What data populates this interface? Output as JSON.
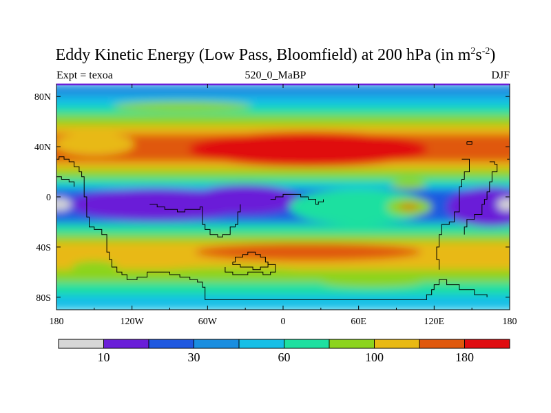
{
  "title": {
    "main": "Eddy Kinetic Energy (Low Pass, Bloomfield) at 200 hPa (in m",
    "sup1": "2",
    "mid": "s",
    "sup2": "-2",
    "close": ")"
  },
  "subtitle_left": "Expt = texoa",
  "subtitle_center": "520_0_MaBP",
  "subtitle_right": "DJF",
  "chart_data": {
    "type": "heatmap",
    "title": "Eddy Kinetic Energy (Low Pass, Bloomfield) at 200 hPa (in m^2 s^-2)",
    "x_range": [
      -180,
      180
    ],
    "y_range": [
      -90,
      90
    ],
    "x_ticks": [
      {
        "value": -180,
        "label": "180"
      },
      {
        "value": -120,
        "label": "120W"
      },
      {
        "value": -60,
        "label": "60W"
      },
      {
        "value": 0,
        "label": "0"
      },
      {
        "value": 60,
        "label": "60E"
      },
      {
        "value": 120,
        "label": "120E"
      },
      {
        "value": 180,
        "label": "180"
      }
    ],
    "y_ticks": [
      {
        "value": 80,
        "label": "80N"
      },
      {
        "value": 40,
        "label": "40N"
      },
      {
        "value": 0,
        "label": "0"
      },
      {
        "value": -40,
        "label": "40S"
      },
      {
        "value": -80,
        "label": "80S"
      }
    ],
    "colorbar": {
      "colors": [
        "#d6d6d6",
        "#6a1ed8",
        "#1f58e0",
        "#1a8ee0",
        "#16bfe6",
        "#1ee0a0",
        "#8cd41e",
        "#e8b914",
        "#e0580c",
        "#e00c10"
      ],
      "labels": [
        {
          "after_box": 1,
          "text": "10"
        },
        {
          "after_box": 3,
          "text": "30"
        },
        {
          "after_box": 5,
          "text": "60"
        },
        {
          "after_box": 7,
          "text": "100"
        },
        {
          "after_box": 9,
          "text": "180"
        }
      ]
    },
    "bands": [
      {
        "lat_top": 90,
        "lat_bottom": 80,
        "color": "#1a8ee0"
      },
      {
        "lat_top": 80,
        "lat_bottom": 72,
        "color": "#16bfe6"
      },
      {
        "lat_top": 72,
        "lat_bottom": 65,
        "color": "#1ee0a0"
      },
      {
        "lat_top": 65,
        "lat_bottom": 57,
        "color": "#8cd41e"
      },
      {
        "lat_top": 57,
        "lat_bottom": 50,
        "color": "#e8b914"
      },
      {
        "lat_top": 50,
        "lat_bottom": 28,
        "color": "#e0580c"
      },
      {
        "lat_top": 28,
        "lat_bottom": 22,
        "color": "#e8b914"
      },
      {
        "lat_top": 22,
        "lat_bottom": 15,
        "color": "#8cd41e"
      },
      {
        "lat_top": 15,
        "lat_bottom": 10,
        "color": "#1ee0a0"
      },
      {
        "lat_top": 10,
        "lat_bottom": 6,
        "color": "#16bfe6"
      },
      {
        "lat_top": 6,
        "lat_bottom": -18,
        "color": "#1f58e0"
      },
      {
        "lat_top": -18,
        "lat_bottom": -22,
        "color": "#1a8ee0"
      },
      {
        "lat_top": -22,
        "lat_bottom": -30,
        "color": "#1ee0a0"
      },
      {
        "lat_top": -30,
        "lat_bottom": -36,
        "color": "#8cd41e"
      },
      {
        "lat_top": -36,
        "lat_bottom": -58,
        "color": "#e8b914"
      },
      {
        "lat_top": -58,
        "lat_bottom": -68,
        "color": "#8cd41e"
      },
      {
        "lat_top": -68,
        "lat_bottom": -78,
        "color": "#1ee0a0"
      },
      {
        "lat_top": -78,
        "lat_bottom": -90,
        "color": "#16bfe6"
      }
    ],
    "features": [
      {
        "shape": "ellipse",
        "lon": 20,
        "lat": 38,
        "rlon": 95,
        "rlat": 14,
        "color": "#e00c10"
      },
      {
        "shape": "ellipse",
        "lon": -150,
        "lat": 42,
        "rlon": 32,
        "rlat": 9,
        "color": "#e8b914"
      },
      {
        "shape": "ellipse",
        "lon": -80,
        "lat": 72,
        "rlon": 55,
        "rlat": 4,
        "color": "#8cd41e"
      },
      {
        "shape": "ellipse",
        "lon": -100,
        "lat": -6,
        "rlon": 70,
        "rlat": 13,
        "color": "#6a1ed8"
      },
      {
        "shape": "ellipse",
        "lon": -30,
        "lat": -2,
        "rlon": 42,
        "rlat": 12,
        "color": "#6a1ed8"
      },
      {
        "shape": "ellipse",
        "lon": 165,
        "lat": -8,
        "rlon": 35,
        "rlat": 16,
        "color": "#6a1ed8"
      },
      {
        "shape": "ellipse",
        "lon": 60,
        "lat": -8,
        "rlon": 55,
        "rlat": 14,
        "color": "#1ee0a0"
      },
      {
        "shape": "ellipse",
        "lon": 100,
        "lat": -8,
        "rlon": 18,
        "rlat": 7,
        "color": "#8cd41e"
      },
      {
        "shape": "ellipse",
        "lon": 100,
        "lat": -8,
        "rlon": 8,
        "rlat": 2,
        "color": "#e0580c"
      },
      {
        "shape": "ellipse",
        "lon": -178,
        "lat": -6,
        "rlon": 10,
        "rlat": 5,
        "color": "#d6d6d6"
      },
      {
        "shape": "ellipse",
        "lon": 178,
        "lat": -6,
        "rlon": 8,
        "rlat": 5,
        "color": "#d6d6d6"
      },
      {
        "shape": "ellipse",
        "lon": 20,
        "lat": -44,
        "rlon": 90,
        "rlat": 7,
        "color": "#e0580c"
      },
      {
        "shape": "ellipse",
        "lon": -40,
        "lat": -62,
        "rlon": 70,
        "rlat": 6,
        "color": "#8cd41e"
      },
      {
        "shape": "ellipse",
        "lon": 70,
        "lat": -68,
        "rlon": 40,
        "rlat": 4,
        "color": "#8cd41e"
      },
      {
        "shape": "ellipse",
        "lon": -150,
        "lat": -56,
        "rlon": 18,
        "rlat": 5,
        "color": "#8cd41e"
      },
      {
        "shape": "ellipse",
        "lon": 100,
        "lat": 10,
        "rlon": 14,
        "rlat": 4,
        "color": "#8cd41e"
      }
    ],
    "outlines": [
      [
        [
          -180,
          30
        ],
        [
          -178,
          32
        ],
        [
          -174,
          30
        ],
        [
          -170,
          28
        ],
        [
          -166,
          24
        ],
        [
          -162,
          20
        ],
        [
          -160,
          16
        ],
        [
          -158,
          10
        ],
        [
          -158,
          0
        ],
        [
          -156,
          -8
        ],
        [
          -156,
          -16
        ],
        [
          -154,
          -24
        ],
        [
          -150,
          -26
        ],
        [
          -146,
          -26
        ],
        [
          -144,
          -30
        ],
        [
          -140,
          -32
        ],
        [
          -140,
          -44
        ],
        [
          -138,
          -50
        ],
        [
          -136,
          -56
        ],
        [
          -132,
          -60
        ],
        [
          -128,
          -62
        ],
        [
          -124,
          -66
        ],
        [
          -116,
          -64
        ],
        [
          -108,
          -60
        ],
        [
          -98,
          -60
        ],
        [
          -94,
          -60
        ],
        [
          -90,
          -62
        ],
        [
          -82,
          -64
        ],
        [
          -74,
          -66
        ],
        [
          -68,
          -68
        ],
        [
          -64,
          -72
        ],
        [
          -62,
          -78
        ],
        [
          -62,
          -82
        ],
        [
          -30,
          -82
        ],
        [
          0,
          -82
        ],
        [
          40,
          -82
        ],
        [
          80,
          -82
        ],
        [
          112,
          -82
        ],
        [
          114,
          -78
        ],
        [
          118,
          -74
        ],
        [
          120,
          -70
        ],
        [
          124,
          -66
        ],
        [
          130,
          -70
        ],
        [
          140,
          -74
        ],
        [
          152,
          -78
        ],
        [
          162,
          -80
        ]
      ],
      [
        [
          -106,
          -6
        ],
        [
          -102,
          -6
        ],
        [
          -100,
          -8
        ],
        [
          -96,
          -8
        ],
        [
          -94,
          -10
        ],
        [
          -88,
          -10
        ],
        [
          -84,
          -12
        ],
        [
          -78,
          -10
        ],
        [
          -72,
          -10
        ],
        [
          -66,
          -8
        ],
        [
          -64,
          -12
        ],
        [
          -64,
          -22
        ],
        [
          -62,
          -26
        ],
        [
          -58,
          -30
        ],
        [
          -52,
          -32
        ],
        [
          -48,
          -30
        ],
        [
          -44,
          -30
        ],
        [
          -42,
          -24
        ],
        [
          -38,
          -22
        ],
        [
          -36,
          -18
        ],
        [
          -36,
          -12
        ],
        [
          -34,
          -6
        ]
      ],
      [
        [
          -10,
          -2
        ],
        [
          -6,
          0
        ],
        [
          0,
          2
        ],
        [
          8,
          2
        ],
        [
          14,
          0
        ],
        [
          20,
          -2
        ],
        [
          26,
          -6
        ],
        [
          28,
          -4
        ],
        [
          32,
          -2
        ]
      ],
      [
        [
          -40,
          -52
        ],
        [
          -38,
          -48
        ],
        [
          -32,
          -46
        ],
        [
          -28,
          -44
        ],
        [
          -22,
          -46
        ],
        [
          -18,
          -48
        ],
        [
          -14,
          -52
        ],
        [
          -12,
          -56
        ],
        [
          -18,
          -58
        ],
        [
          -24,
          -56
        ],
        [
          -30,
          -56
        ],
        [
          -34,
          -54
        ],
        [
          -40,
          -52
        ]
      ],
      [
        [
          -46,
          -56
        ],
        [
          -46,
          -60
        ],
        [
          -40,
          -62
        ],
        [
          -34,
          -62
        ],
        [
          -28,
          -60
        ],
        [
          -22,
          -60
        ],
        [
          -16,
          -62
        ],
        [
          -10,
          -60
        ],
        [
          -6,
          -58
        ],
        [
          -6,
          -54
        ],
        [
          -12,
          -52
        ]
      ],
      [
        [
          142,
          30
        ],
        [
          148,
          30
        ],
        [
          148,
          20
        ],
        [
          144,
          14
        ],
        [
          142,
          8
        ],
        [
          140,
          0
        ],
        [
          140,
          -12
        ],
        [
          136,
          -20
        ],
        [
          132,
          -22
        ],
        [
          126,
          -30
        ],
        [
          124,
          -40
        ],
        [
          122,
          -50
        ],
        [
          124,
          -58
        ]
      ],
      [
        [
          164,
          28
        ],
        [
          168,
          26
        ],
        [
          170,
          20
        ],
        [
          166,
          12
        ],
        [
          164,
          4
        ],
        [
          162,
          -2
        ],
        [
          160,
          -6
        ],
        [
          158,
          -14
        ],
        [
          152,
          -18
        ],
        [
          146,
          -24
        ],
        [
          144,
          -30
        ]
      ],
      [
        [
          -180,
          16
        ],
        [
          -176,
          14
        ],
        [
          -170,
          12
        ],
        [
          -166,
          8
        ]
      ],
      [
        [
          146,
          44
        ],
        [
          150,
          44
        ],
        [
          150,
          42
        ],
        [
          146,
          42
        ],
        [
          146,
          44
        ]
      ],
      [
        [
          178,
          30
        ],
        [
          180,
          28
        ]
      ]
    ]
  }
}
